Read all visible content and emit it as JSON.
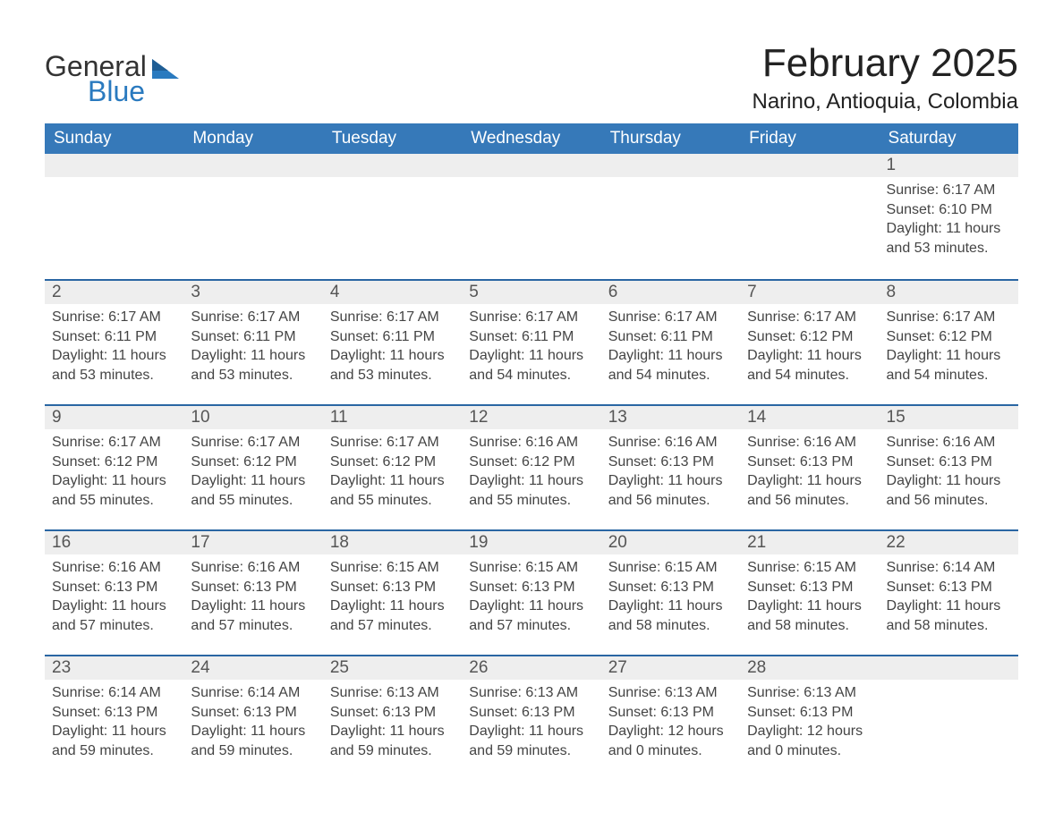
{
  "logo": {
    "line1": "General",
    "line2": "Blue"
  },
  "title": "February 2025",
  "location": "Narino, Antioquia, Colombia",
  "colors": {
    "header_blue": "#3679b9",
    "accent_blue": "#2a66a3",
    "row_bg": "#eeeeee",
    "logo_blue": "#2a7abf",
    "text_dark": "#333333"
  },
  "weekdays": [
    "Sunday",
    "Monday",
    "Tuesday",
    "Wednesday",
    "Thursday",
    "Friday",
    "Saturday"
  ],
  "labels": {
    "sunrise": "Sunrise:",
    "sunset": "Sunset:",
    "daylight": "Daylight:"
  },
  "weeks": [
    [
      {
        "empty": true
      },
      {
        "empty": true
      },
      {
        "empty": true
      },
      {
        "empty": true
      },
      {
        "empty": true
      },
      {
        "empty": true
      },
      {
        "day": "1",
        "sunrise": "6:17 AM",
        "sunset": "6:10 PM",
        "daylight": "11 hours and 53 minutes."
      }
    ],
    [
      {
        "day": "2",
        "sunrise": "6:17 AM",
        "sunset": "6:11 PM",
        "daylight": "11 hours and 53 minutes."
      },
      {
        "day": "3",
        "sunrise": "6:17 AM",
        "sunset": "6:11 PM",
        "daylight": "11 hours and 53 minutes."
      },
      {
        "day": "4",
        "sunrise": "6:17 AM",
        "sunset": "6:11 PM",
        "daylight": "11 hours and 53 minutes."
      },
      {
        "day": "5",
        "sunrise": "6:17 AM",
        "sunset": "6:11 PM",
        "daylight": "11 hours and 54 minutes."
      },
      {
        "day": "6",
        "sunrise": "6:17 AM",
        "sunset": "6:11 PM",
        "daylight": "11 hours and 54 minutes."
      },
      {
        "day": "7",
        "sunrise": "6:17 AM",
        "sunset": "6:12 PM",
        "daylight": "11 hours and 54 minutes."
      },
      {
        "day": "8",
        "sunrise": "6:17 AM",
        "sunset": "6:12 PM",
        "daylight": "11 hours and 54 minutes."
      }
    ],
    [
      {
        "day": "9",
        "sunrise": "6:17 AM",
        "sunset": "6:12 PM",
        "daylight": "11 hours and 55 minutes."
      },
      {
        "day": "10",
        "sunrise": "6:17 AM",
        "sunset": "6:12 PM",
        "daylight": "11 hours and 55 minutes."
      },
      {
        "day": "11",
        "sunrise": "6:17 AM",
        "sunset": "6:12 PM",
        "daylight": "11 hours and 55 minutes."
      },
      {
        "day": "12",
        "sunrise": "6:16 AM",
        "sunset": "6:12 PM",
        "daylight": "11 hours and 55 minutes."
      },
      {
        "day": "13",
        "sunrise": "6:16 AM",
        "sunset": "6:13 PM",
        "daylight": "11 hours and 56 minutes."
      },
      {
        "day": "14",
        "sunrise": "6:16 AM",
        "sunset": "6:13 PM",
        "daylight": "11 hours and 56 minutes."
      },
      {
        "day": "15",
        "sunrise": "6:16 AM",
        "sunset": "6:13 PM",
        "daylight": "11 hours and 56 minutes."
      }
    ],
    [
      {
        "day": "16",
        "sunrise": "6:16 AM",
        "sunset": "6:13 PM",
        "daylight": "11 hours and 57 minutes."
      },
      {
        "day": "17",
        "sunrise": "6:16 AM",
        "sunset": "6:13 PM",
        "daylight": "11 hours and 57 minutes."
      },
      {
        "day": "18",
        "sunrise": "6:15 AM",
        "sunset": "6:13 PM",
        "daylight": "11 hours and 57 minutes."
      },
      {
        "day": "19",
        "sunrise": "6:15 AM",
        "sunset": "6:13 PM",
        "daylight": "11 hours and 57 minutes."
      },
      {
        "day": "20",
        "sunrise": "6:15 AM",
        "sunset": "6:13 PM",
        "daylight": "11 hours and 58 minutes."
      },
      {
        "day": "21",
        "sunrise": "6:15 AM",
        "sunset": "6:13 PM",
        "daylight": "11 hours and 58 minutes."
      },
      {
        "day": "22",
        "sunrise": "6:14 AM",
        "sunset": "6:13 PM",
        "daylight": "11 hours and 58 minutes."
      }
    ],
    [
      {
        "day": "23",
        "sunrise": "6:14 AM",
        "sunset": "6:13 PM",
        "daylight": "11 hours and 59 minutes."
      },
      {
        "day": "24",
        "sunrise": "6:14 AM",
        "sunset": "6:13 PM",
        "daylight": "11 hours and 59 minutes."
      },
      {
        "day": "25",
        "sunrise": "6:13 AM",
        "sunset": "6:13 PM",
        "daylight": "11 hours and 59 minutes."
      },
      {
        "day": "26",
        "sunrise": "6:13 AM",
        "sunset": "6:13 PM",
        "daylight": "11 hours and 59 minutes."
      },
      {
        "day": "27",
        "sunrise": "6:13 AM",
        "sunset": "6:13 PM",
        "daylight": "12 hours and 0 minutes."
      },
      {
        "day": "28",
        "sunrise": "6:13 AM",
        "sunset": "6:13 PM",
        "daylight": "12 hours and 0 minutes."
      },
      {
        "empty": true
      }
    ]
  ]
}
